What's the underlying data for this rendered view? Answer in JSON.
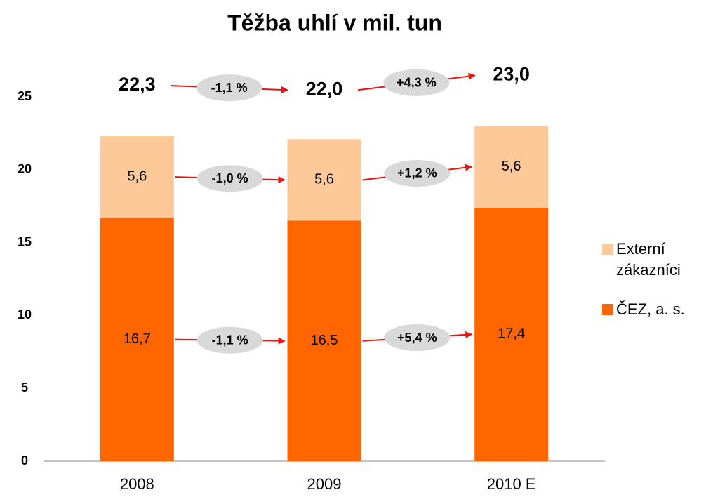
{
  "chart_data": {
    "type": "stacked_bar",
    "title": "Těžba uhlí v mil. tun",
    "categories": [
      "2008",
      "2009",
      "2010 E"
    ],
    "series": [
      {
        "name": "ČEZ, a. s.",
        "color": "#ff6600",
        "values": [
          16.7,
          16.5,
          17.4
        ],
        "value_labels": [
          "16,7",
          "16,5",
          "17,4"
        ],
        "changes": [
          "-1,1 %",
          "+5,4 %"
        ]
      },
      {
        "name": "Externí zákazníci",
        "color": "#fdc998",
        "values": [
          5.6,
          5.6,
          5.6
        ],
        "value_labels": [
          "5,6",
          "5,6",
          "5,6"
        ],
        "changes": [
          "-1,0 %",
          "+1,2 %"
        ]
      }
    ],
    "totals": {
      "values": [
        22.3,
        22.0,
        23.0
      ],
      "value_labels": [
        "22,3",
        "22,0",
        "23,0"
      ],
      "changes": [
        "-1,1 %",
        "+4,3 %"
      ]
    },
    "ylim": [
      0,
      25
    ],
    "yticks": [
      0,
      5,
      10,
      15,
      20,
      25
    ],
    "legend": "right"
  }
}
